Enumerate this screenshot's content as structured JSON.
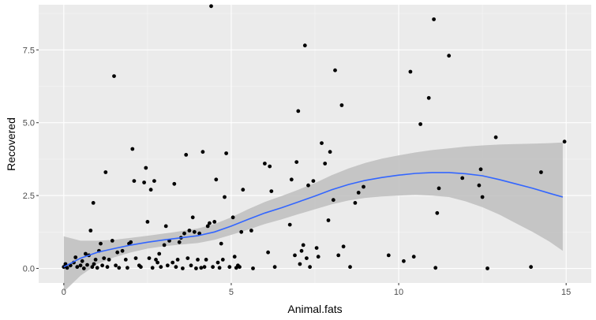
{
  "chart_data": {
    "type": "scatter",
    "title": "",
    "xlabel": "Animal.fats",
    "ylabel": "Recovered",
    "xlim": [
      -0.75,
      15.75
    ],
    "ylim": [
      -0.5,
      9.05
    ],
    "x_ticks": [
      0,
      5,
      10,
      15
    ],
    "x_tick_labels": [
      "0",
      "5",
      "10",
      "15"
    ],
    "y_ticks": [
      0,
      2.5,
      5,
      7.5
    ],
    "y_tick_labels": [
      "0.0",
      "2.5",
      "5.0",
      "7.5"
    ],
    "grid": true,
    "legend": "none",
    "colors": {
      "panel": "#ebebeb",
      "grid_major": "#ffffff",
      "points": "#000000",
      "smooth_line": "#3366ff",
      "confidence_band": "#bebebe"
    },
    "points": [
      {
        "x": 0.0,
        "y": 0.05
      },
      {
        "x": 0.05,
        "y": 0.15
      },
      {
        "x": 0.1,
        "y": 0.02
      },
      {
        "x": 0.2,
        "y": 0.1
      },
      {
        "x": 0.3,
        "y": 0.2
      },
      {
        "x": 0.35,
        "y": 0.38
      },
      {
        "x": 0.4,
        "y": 0.05
      },
      {
        "x": 0.5,
        "y": 0.1
      },
      {
        "x": 0.55,
        "y": 0.25
      },
      {
        "x": 0.6,
        "y": 0.0
      },
      {
        "x": 0.65,
        "y": 0.5
      },
      {
        "x": 0.7,
        "y": 0.12
      },
      {
        "x": 0.75,
        "y": 0.45
      },
      {
        "x": 0.8,
        "y": 1.3
      },
      {
        "x": 0.85,
        "y": 0.05
      },
      {
        "x": 0.88,
        "y": 2.25
      },
      {
        "x": 0.9,
        "y": 0.15
      },
      {
        "x": 0.95,
        "y": 0.3
      },
      {
        "x": 1.0,
        "y": 0.02
      },
      {
        "x": 1.05,
        "y": 0.6
      },
      {
        "x": 1.1,
        "y": 0.85
      },
      {
        "x": 1.15,
        "y": 0.1
      },
      {
        "x": 1.2,
        "y": 0.35
      },
      {
        "x": 1.25,
        "y": 3.3
      },
      {
        "x": 1.3,
        "y": 0.05
      },
      {
        "x": 1.35,
        "y": 0.3
      },
      {
        "x": 1.45,
        "y": 0.95
      },
      {
        "x": 1.5,
        "y": 6.6
      },
      {
        "x": 1.55,
        "y": 0.1
      },
      {
        "x": 1.6,
        "y": 0.55
      },
      {
        "x": 1.65,
        "y": 0.02
      },
      {
        "x": 1.75,
        "y": 0.6
      },
      {
        "x": 1.85,
        "y": 0.3
      },
      {
        "x": 1.9,
        "y": 0.02
      },
      {
        "x": 1.95,
        "y": 0.85
      },
      {
        "x": 2.0,
        "y": 0.9
      },
      {
        "x": 2.05,
        "y": 4.1
      },
      {
        "x": 2.1,
        "y": 3.0
      },
      {
        "x": 2.15,
        "y": 0.35
      },
      {
        "x": 2.25,
        "y": 0.1
      },
      {
        "x": 2.3,
        "y": 0.05
      },
      {
        "x": 2.4,
        "y": 2.95
      },
      {
        "x": 2.45,
        "y": 3.45
      },
      {
        "x": 2.5,
        "y": 1.6
      },
      {
        "x": 2.55,
        "y": 0.35
      },
      {
        "x": 2.6,
        "y": 2.7
      },
      {
        "x": 2.65,
        "y": 0.02
      },
      {
        "x": 2.7,
        "y": 3.0
      },
      {
        "x": 2.75,
        "y": 0.3
      },
      {
        "x": 2.8,
        "y": 0.2
      },
      {
        "x": 2.85,
        "y": 0.5
      },
      {
        "x": 2.9,
        "y": 0.05
      },
      {
        "x": 3.0,
        "y": 0.8
      },
      {
        "x": 3.05,
        "y": 1.45
      },
      {
        "x": 3.1,
        "y": 0.1
      },
      {
        "x": 3.15,
        "y": 0.95
      },
      {
        "x": 3.25,
        "y": 0.2
      },
      {
        "x": 3.3,
        "y": 2.9
      },
      {
        "x": 3.35,
        "y": 0.05
      },
      {
        "x": 3.4,
        "y": 0.3
      },
      {
        "x": 3.45,
        "y": 0.9
      },
      {
        "x": 3.5,
        "y": 1.05
      },
      {
        "x": 3.55,
        "y": 0.0
      },
      {
        "x": 3.6,
        "y": 1.2
      },
      {
        "x": 3.65,
        "y": 3.9
      },
      {
        "x": 3.7,
        "y": 0.35
      },
      {
        "x": 3.75,
        "y": 1.3
      },
      {
        "x": 3.8,
        "y": 0.1
      },
      {
        "x": 3.85,
        "y": 1.75
      },
      {
        "x": 3.9,
        "y": 1.25
      },
      {
        "x": 3.95,
        "y": 0.0
      },
      {
        "x": 4.0,
        "y": 0.3
      },
      {
        "x": 4.05,
        "y": 1.2
      },
      {
        "x": 4.1,
        "y": 0.02
      },
      {
        "x": 4.15,
        "y": 4.0
      },
      {
        "x": 4.2,
        "y": 0.05
      },
      {
        "x": 4.25,
        "y": 0.3
      },
      {
        "x": 4.3,
        "y": 1.45
      },
      {
        "x": 4.35,
        "y": 1.55
      },
      {
        "x": 4.4,
        "y": 9.0
      },
      {
        "x": 4.45,
        "y": 0.05
      },
      {
        "x": 4.5,
        "y": 1.6
      },
      {
        "x": 4.55,
        "y": 3.05
      },
      {
        "x": 4.6,
        "y": 0.2
      },
      {
        "x": 4.65,
        "y": 0.02
      },
      {
        "x": 4.7,
        "y": 0.85
      },
      {
        "x": 4.75,
        "y": 0.3
      },
      {
        "x": 4.8,
        "y": 2.45
      },
      {
        "x": 4.85,
        "y": 3.95
      },
      {
        "x": 4.95,
        "y": 0.05
      },
      {
        "x": 5.05,
        "y": 1.75
      },
      {
        "x": 5.1,
        "y": 0.4
      },
      {
        "x": 5.15,
        "y": 0.02
      },
      {
        "x": 5.2,
        "y": 0.1
      },
      {
        "x": 5.25,
        "y": 0.05
      },
      {
        "x": 5.3,
        "y": 1.25
      },
      {
        "x": 5.35,
        "y": 2.7
      },
      {
        "x": 5.6,
        "y": 1.3
      },
      {
        "x": 5.65,
        "y": 0.0
      },
      {
        "x": 6.0,
        "y": 3.6
      },
      {
        "x": 6.1,
        "y": 0.55
      },
      {
        "x": 6.15,
        "y": 3.5
      },
      {
        "x": 6.2,
        "y": 2.65
      },
      {
        "x": 6.3,
        "y": 0.05
      },
      {
        "x": 6.75,
        "y": 1.5
      },
      {
        "x": 6.8,
        "y": 3.05
      },
      {
        "x": 6.9,
        "y": 0.45
      },
      {
        "x": 6.95,
        "y": 3.65
      },
      {
        "x": 7.0,
        "y": 5.4
      },
      {
        "x": 7.05,
        "y": 0.15
      },
      {
        "x": 7.1,
        "y": 0.6
      },
      {
        "x": 7.15,
        "y": 0.8
      },
      {
        "x": 7.2,
        "y": 7.65
      },
      {
        "x": 7.25,
        "y": 0.35
      },
      {
        "x": 7.3,
        "y": 2.85
      },
      {
        "x": 7.35,
        "y": 0.05
      },
      {
        "x": 7.45,
        "y": 3.0
      },
      {
        "x": 7.55,
        "y": 0.7
      },
      {
        "x": 7.6,
        "y": 0.4
      },
      {
        "x": 7.7,
        "y": 4.3
      },
      {
        "x": 7.8,
        "y": 3.6
      },
      {
        "x": 7.9,
        "y": 1.65
      },
      {
        "x": 7.95,
        "y": 4.0
      },
      {
        "x": 8.05,
        "y": 2.35
      },
      {
        "x": 8.1,
        "y": 6.8
      },
      {
        "x": 8.2,
        "y": 0.45
      },
      {
        "x": 8.3,
        "y": 5.6
      },
      {
        "x": 8.35,
        "y": 0.75
      },
      {
        "x": 8.55,
        "y": 0.05
      },
      {
        "x": 8.7,
        "y": 2.25
      },
      {
        "x": 8.8,
        "y": 2.6
      },
      {
        "x": 8.95,
        "y": 2.8
      },
      {
        "x": 9.7,
        "y": 0.45
      },
      {
        "x": 10.15,
        "y": 0.25
      },
      {
        "x": 10.35,
        "y": 6.75
      },
      {
        "x": 10.45,
        "y": 0.4
      },
      {
        "x": 10.65,
        "y": 4.95
      },
      {
        "x": 10.9,
        "y": 5.85
      },
      {
        "x": 11.05,
        "y": 8.55
      },
      {
        "x": 11.1,
        "y": 0.02
      },
      {
        "x": 11.15,
        "y": 1.9
      },
      {
        "x": 11.2,
        "y": 2.75
      },
      {
        "x": 11.5,
        "y": 7.3
      },
      {
        "x": 11.9,
        "y": 3.1
      },
      {
        "x": 12.5,
        "y": 2.45
      },
      {
        "x": 12.4,
        "y": 2.85
      },
      {
        "x": 12.45,
        "y": 3.4
      },
      {
        "x": 12.65,
        "y": 0.0
      },
      {
        "x": 12.9,
        "y": 4.5
      },
      {
        "x": 13.95,
        "y": 0.05
      },
      {
        "x": 14.25,
        "y": 3.3
      },
      {
        "x": 14.95,
        "y": 4.35
      }
    ],
    "smooth": [
      {
        "x": 0.0,
        "y": 0.05,
        "lo": -0.8,
        "hi": 1.1
      },
      {
        "x": 0.5,
        "y": 0.35,
        "lo": -0.25,
        "hi": 0.95
      },
      {
        "x": 1.0,
        "y": 0.55,
        "lo": 0.15,
        "hi": 0.95
      },
      {
        "x": 1.5,
        "y": 0.68,
        "lo": 0.38,
        "hi": 0.98
      },
      {
        "x": 2.0,
        "y": 0.8,
        "lo": 0.55,
        "hi": 1.05
      },
      {
        "x": 2.5,
        "y": 0.9,
        "lo": 0.68,
        "hi": 1.12
      },
      {
        "x": 3.0,
        "y": 0.98,
        "lo": 0.76,
        "hi": 1.2
      },
      {
        "x": 3.5,
        "y": 1.05,
        "lo": 0.82,
        "hi": 1.28
      },
      {
        "x": 4.0,
        "y": 1.12,
        "lo": 0.87,
        "hi": 1.37
      },
      {
        "x": 4.5,
        "y": 1.25,
        "lo": 0.98,
        "hi": 1.52
      },
      {
        "x": 5.0,
        "y": 1.45,
        "lo": 1.15,
        "hi": 1.75
      },
      {
        "x": 5.5,
        "y": 1.68,
        "lo": 1.33,
        "hi": 2.03
      },
      {
        "x": 6.0,
        "y": 1.9,
        "lo": 1.52,
        "hi": 2.28
      },
      {
        "x": 6.5,
        "y": 2.08,
        "lo": 1.68,
        "hi": 2.48
      },
      {
        "x": 7.0,
        "y": 2.28,
        "lo": 1.86,
        "hi": 2.7
      },
      {
        "x": 7.5,
        "y": 2.48,
        "lo": 2.03,
        "hi": 2.93
      },
      {
        "x": 8.0,
        "y": 2.7,
        "lo": 2.2,
        "hi": 3.2
      },
      {
        "x": 8.5,
        "y": 2.88,
        "lo": 2.33,
        "hi": 3.43
      },
      {
        "x": 9.0,
        "y": 3.02,
        "lo": 2.42,
        "hi": 3.62
      },
      {
        "x": 9.5,
        "y": 3.12,
        "lo": 2.47,
        "hi": 3.77
      },
      {
        "x": 10.0,
        "y": 3.2,
        "lo": 2.5,
        "hi": 3.88
      },
      {
        "x": 10.5,
        "y": 3.26,
        "lo": 2.52,
        "hi": 3.98
      },
      {
        "x": 11.0,
        "y": 3.29,
        "lo": 2.5,
        "hi": 4.06
      },
      {
        "x": 11.5,
        "y": 3.29,
        "lo": 2.45,
        "hi": 4.12
      },
      {
        "x": 12.0,
        "y": 3.25,
        "lo": 2.3,
        "hi": 4.18
      },
      {
        "x": 12.5,
        "y": 3.18,
        "lo": 2.1,
        "hi": 4.22
      },
      {
        "x": 13.0,
        "y": 3.05,
        "lo": 1.85,
        "hi": 4.25
      },
      {
        "x": 13.5,
        "y": 2.9,
        "lo": 1.55,
        "hi": 4.27
      },
      {
        "x": 14.0,
        "y": 2.75,
        "lo": 1.25,
        "hi": 4.28
      },
      {
        "x": 14.5,
        "y": 2.58,
        "lo": 0.92,
        "hi": 4.3
      },
      {
        "x": 14.9,
        "y": 2.45,
        "lo": 0.6,
        "hi": 4.32
      }
    ]
  }
}
